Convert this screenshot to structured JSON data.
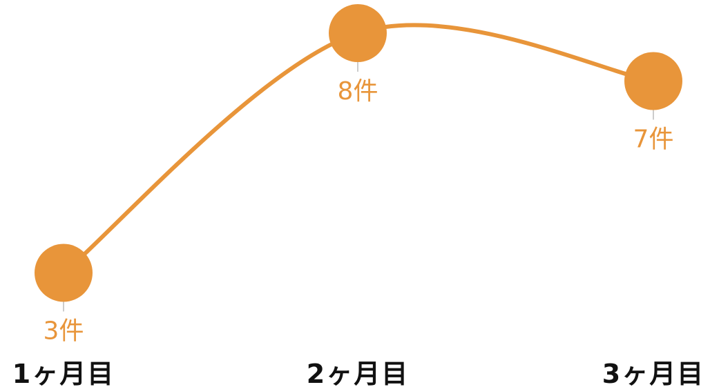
{
  "chart_data": {
    "type": "line",
    "categories": [
      "1ヶ月目",
      "2ヶ月目",
      "3ヶ月目"
    ],
    "values": [
      3,
      8,
      7
    ],
    "data_labels": [
      "3件",
      "8件",
      "7件"
    ],
    "title": "",
    "xlabel": "",
    "ylabel": "",
    "ylim": [
      0,
      10
    ],
    "smooth": true,
    "grid": false,
    "legend": "none",
    "color": "#e8953a"
  }
}
